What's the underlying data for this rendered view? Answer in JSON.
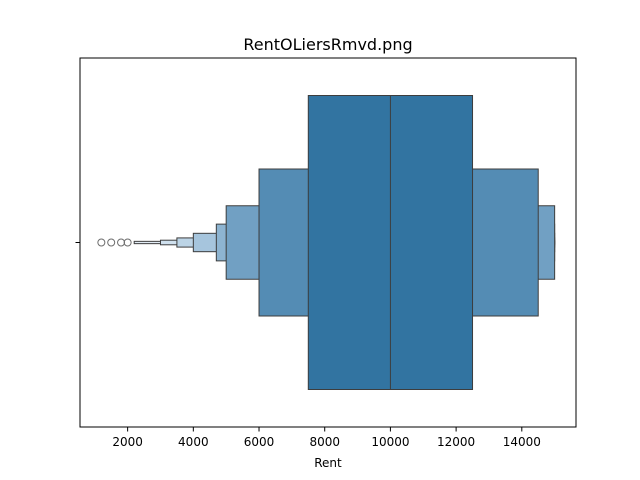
{
  "chart_data": {
    "type": "boxen",
    "title": "RentOLiersRmvd.png",
    "xlabel": "Rent",
    "ylabel": "",
    "xlim": [
      550,
      15650
    ],
    "xticks": [
      2000,
      4000,
      6000,
      8000,
      10000,
      12000,
      14000
    ],
    "xtick_labels": [
      "2000",
      "4000",
      "6000",
      "8000",
      "10000",
      "12000",
      "14000"
    ],
    "median": 10000,
    "levels": [
      {
        "low": 7500,
        "high": 12500,
        "color": "#3274a1"
      },
      {
        "low": 6000,
        "high": 14500,
        "color": "#548cb4"
      },
      {
        "low": 5000,
        "high": 15000,
        "color": "#71a0c3"
      },
      {
        "low": 4700,
        "high": 15000,
        "color": "#8db4d1"
      },
      {
        "low": 4000,
        "high": 15000,
        "color": "#a6c5dd"
      },
      {
        "low": 3500,
        "high": 15000,
        "color": "#bcd4e6"
      },
      {
        "low": 3000,
        "high": 15000,
        "color": "#cfe0ee"
      },
      {
        "low": 2200,
        "high": 15000,
        "color": "#e2ecf5"
      }
    ],
    "outliers": [
      1200,
      1500,
      1800,
      2000
    ],
    "edge_color": "#3d3d3d",
    "grid": false,
    "legend": "none"
  }
}
